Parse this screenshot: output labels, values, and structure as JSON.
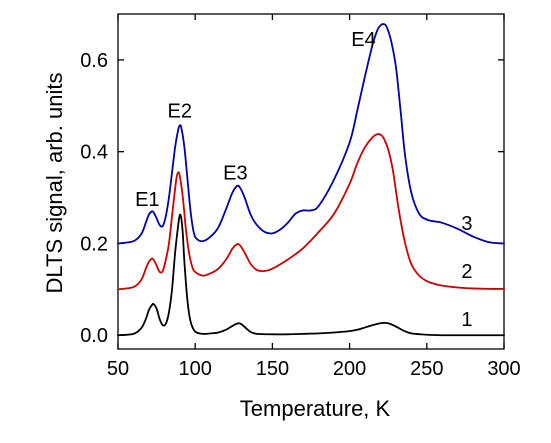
{
  "chart_data": {
    "type": "line",
    "title": "",
    "xlabel": "Temperature, K",
    "ylabel": "DLTS signal, arb. units",
    "xlim": [
      50,
      300
    ],
    "ylim": [
      -0.03,
      0.7
    ],
    "xticks": [
      50,
      100,
      150,
      200,
      250,
      300
    ],
    "yticks": [
      0.0,
      0.2,
      0.4,
      0.6
    ],
    "xtick_labels": [
      "50",
      "100",
      "150",
      "200",
      "250",
      "300"
    ],
    "ytick_labels": [
      "0.0",
      "0.2",
      "0.4",
      "0.6"
    ],
    "grid": false,
    "legend": "none",
    "series": [
      {
        "label": "1",
        "color": "#000000",
        "x": [
          50,
          60,
          65,
          68,
          70,
          72,
          73,
          75,
          77,
          79,
          81,
          83,
          85,
          87,
          89,
          90,
          91,
          92,
          93,
          95,
          97,
          100,
          105,
          110,
          115,
          120,
          125,
          128,
          130,
          133,
          136,
          140,
          150,
          160,
          170,
          180,
          190,
          200,
          205,
          210,
          215,
          220,
          223,
          226,
          230,
          235,
          240,
          250,
          260,
          270,
          280,
          290,
          300
        ],
        "y": [
          0.0,
          0.003,
          0.015,
          0.035,
          0.055,
          0.066,
          0.068,
          0.058,
          0.035,
          0.022,
          0.025,
          0.05,
          0.1,
          0.18,
          0.24,
          0.262,
          0.255,
          0.22,
          0.16,
          0.075,
          0.03,
          0.008,
          0.003,
          0.004,
          0.006,
          0.012,
          0.022,
          0.026,
          0.024,
          0.015,
          0.007,
          0.003,
          0.002,
          0.002,
          0.003,
          0.004,
          0.006,
          0.009,
          0.012,
          0.017,
          0.022,
          0.026,
          0.027,
          0.025,
          0.019,
          0.01,
          0.004,
          0.001,
          0.0,
          0.0,
          0.0,
          0.0,
          0.0
        ]
      },
      {
        "label": "2",
        "color": "#cc0000",
        "x": [
          50,
          60,
          65,
          68,
          70,
          72,
          73,
          75,
          77,
          79,
          81,
          83,
          85,
          87,
          88,
          89,
          90,
          92,
          94,
          96,
          98,
          100,
          105,
          110,
          115,
          120,
          124,
          127,
          129,
          132,
          136,
          140,
          145,
          150,
          160,
          170,
          180,
          190,
          200,
          205,
          210,
          215,
          218,
          220,
          222,
          225,
          228,
          232,
          236,
          240,
          245,
          250,
          255,
          260,
          270,
          280,
          290,
          300
        ],
        "y": [
          0.1,
          0.105,
          0.12,
          0.145,
          0.16,
          0.167,
          0.165,
          0.152,
          0.138,
          0.14,
          0.165,
          0.2,
          0.26,
          0.32,
          0.345,
          0.355,
          0.347,
          0.3,
          0.23,
          0.18,
          0.15,
          0.138,
          0.13,
          0.135,
          0.145,
          0.165,
          0.188,
          0.198,
          0.196,
          0.18,
          0.155,
          0.142,
          0.14,
          0.145,
          0.165,
          0.19,
          0.225,
          0.265,
          0.33,
          0.375,
          0.41,
          0.432,
          0.438,
          0.437,
          0.43,
          0.405,
          0.36,
          0.27,
          0.2,
          0.155,
          0.13,
          0.118,
          0.112,
          0.108,
          0.104,
          0.102,
          0.101,
          0.101
        ]
      },
      {
        "label": "3",
        "color": "#0000aa",
        "x": [
          50,
          60,
          65,
          68,
          70,
          72,
          73,
          75,
          77,
          79,
          81,
          83,
          85,
          87,
          89,
          90,
          91,
          93,
          95,
          97,
          99,
          101,
          105,
          110,
          115,
          120,
          124,
          127,
          129,
          132,
          136,
          140,
          145,
          150,
          155,
          160,
          165,
          170,
          175,
          180,
          190,
          200,
          205,
          210,
          215,
          218,
          220,
          222,
          224,
          227,
          230,
          233,
          236,
          240,
          245,
          250,
          255,
          260,
          270,
          280,
          290,
          300
        ],
        "y": [
          0.2,
          0.205,
          0.22,
          0.245,
          0.263,
          0.27,
          0.268,
          0.255,
          0.24,
          0.238,
          0.26,
          0.3,
          0.355,
          0.41,
          0.448,
          0.457,
          0.452,
          0.41,
          0.34,
          0.27,
          0.225,
          0.21,
          0.205,
          0.215,
          0.235,
          0.275,
          0.31,
          0.325,
          0.322,
          0.3,
          0.262,
          0.24,
          0.225,
          0.222,
          0.23,
          0.245,
          0.265,
          0.272,
          0.272,
          0.282,
          0.34,
          0.42,
          0.49,
          0.565,
          0.635,
          0.665,
          0.675,
          0.678,
          0.672,
          0.64,
          0.585,
          0.49,
          0.39,
          0.31,
          0.265,
          0.252,
          0.248,
          0.245,
          0.232,
          0.215,
          0.203,
          0.2
        ]
      }
    ],
    "annotations": [
      {
        "text": "E1",
        "x": 69,
        "y": 0.297
      },
      {
        "text": "E2",
        "x": 90,
        "y": 0.49
      },
      {
        "text": "E3",
        "x": 126,
        "y": 0.355
      },
      {
        "text": "E4",
        "x": 209,
        "y": 0.645
      },
      {
        "text": "3",
        "x": 276,
        "y": 0.245
      },
      {
        "text": "2",
        "x": 276,
        "y": 0.14
      },
      {
        "text": "1",
        "x": 276,
        "y": 0.035
      }
    ]
  }
}
